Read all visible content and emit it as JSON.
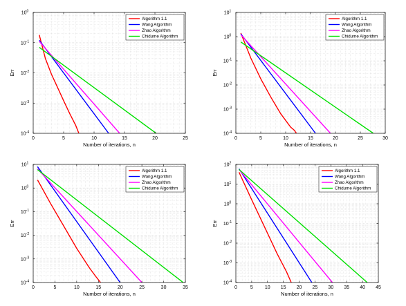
{
  "colors": {
    "algorithm11": "#ff0000",
    "wang": "#0000ff",
    "zhao": "#ff00ff",
    "chidume": "#00e000",
    "grid": "#d8d8d8",
    "axis": "#000000"
  },
  "chart_data": [
    {
      "type": "line",
      "xlabel": "Number of iterations, n",
      "ylabel": "Err",
      "yscale": "log",
      "xlim": [
        0,
        25
      ],
      "ylim_exp": [
        -4,
        0
      ],
      "xticks": [
        0,
        5,
        10,
        15,
        20,
        25
      ],
      "yticks_exp": [
        -4,
        -3,
        -2,
        -1,
        0
      ],
      "legend": "top-right",
      "grid": true,
      "series": [
        {
          "name": "Algorithm 1.1",
          "color_key": "algorithm11",
          "x": [
            1,
            2,
            3,
            4,
            5,
            6,
            7,
            7.5
          ],
          "y": [
            0.18,
            0.03,
            0.009,
            0.0033,
            0.0012,
            0.00045,
            0.00018,
            0.0001
          ]
        },
        {
          "name": "Wang Algorithm",
          "color_key": "wang",
          "x": [
            1,
            12.4
          ],
          "y": [
            0.12,
            0.0001
          ]
        },
        {
          "name": "Zhao Algorithm",
          "color_key": "zhao",
          "x": [
            1,
            14.2
          ],
          "y": [
            0.11,
            0.0001
          ]
        },
        {
          "name": "Chidume Algorithm",
          "color_key": "chidume",
          "x": [
            1,
            20.2
          ],
          "y": [
            0.07,
            0.0001
          ]
        }
      ]
    },
    {
      "type": "line",
      "xlabel": "Number of iterations, n",
      "ylabel": "Err",
      "yscale": "log",
      "xlim": [
        0,
        30
      ],
      "ylim_exp": [
        -4,
        1
      ],
      "xticks": [
        0,
        5,
        10,
        15,
        20,
        25,
        30
      ],
      "yticks_exp": [
        -4,
        -3,
        -2,
        -1,
        0,
        1
      ],
      "legend": "top-right",
      "grid": true,
      "series": [
        {
          "name": "Algorithm 1.1",
          "color_key": "algorithm11",
          "x": [
            1,
            3,
            5,
            7,
            9,
            11,
            11.8,
            12,
            12.2
          ],
          "y": [
            1.4,
            0.13,
            0.018,
            0.0032,
            0.00065,
            0.00018,
            0.00013,
            0.00011,
            0.0001
          ]
        },
        {
          "name": "Wang Algorithm",
          "color_key": "wang",
          "x": [
            1,
            16
          ],
          "y": [
            1.3,
            0.0001
          ]
        },
        {
          "name": "Zhao Algorithm",
          "color_key": "zhao",
          "x": [
            1,
            19
          ],
          "y": [
            1.2,
            0.0001
          ]
        },
        {
          "name": "Chidume Algorithm",
          "color_key": "chidume",
          "x": [
            1,
            27.6
          ],
          "y": [
            0.6,
            0.0001
          ]
        }
      ]
    },
    {
      "type": "line",
      "xlabel": "Number of iterations, n",
      "ylabel": "Err",
      "yscale": "log",
      "xlim": [
        0,
        35
      ],
      "ylim_exp": [
        -4,
        1
      ],
      "xticks": [
        0,
        5,
        10,
        15,
        20,
        25,
        30,
        35
      ],
      "yticks_exp": [
        -4,
        -3,
        -2,
        -1,
        0,
        1
      ],
      "legend": "top-right",
      "grid": true,
      "series": [
        {
          "name": "Algorithm 1.1",
          "color_key": "algorithm11",
          "x": [
            1,
            4,
            7,
            10,
            13,
            14.5,
            15.5
          ],
          "y": [
            2.2,
            0.22,
            0.025,
            0.0028,
            0.0004,
            0.00017,
            0.0001
          ]
        },
        {
          "name": "Wang Algorithm",
          "color_key": "wang",
          "x": [
            1,
            20
          ],
          "y": [
            8,
            0.0001
          ]
        },
        {
          "name": "Zhao Algorithm",
          "color_key": "zhao",
          "x": [
            1,
            25
          ],
          "y": [
            6.5,
            0.0001
          ]
        },
        {
          "name": "Chidume Algorithm",
          "color_key": "chidume",
          "x": [
            1,
            34.5
          ],
          "y": [
            6,
            0.0001
          ]
        }
      ]
    },
    {
      "type": "line",
      "xlabel": "Number of iterations, n",
      "ylabel": "Err",
      "yscale": "log",
      "xlim": [
        0,
        45
      ],
      "ylim_exp": [
        -4,
        2
      ],
      "xticks": [
        0,
        5,
        10,
        15,
        20,
        25,
        30,
        35,
        40,
        45
      ],
      "yticks_exp": [
        -4,
        -3,
        -2,
        -1,
        0,
        1,
        2
      ],
      "legend": "top-right",
      "grid": true,
      "series": [
        {
          "name": "Algorithm 1.1",
          "color_key": "algorithm11",
          "x": [
            1,
            5,
            9,
            13,
            16,
            17.5
          ],
          "y": [
            40,
            1.6,
            0.07,
            0.003,
            0.00035,
            0.0001
          ]
        },
        {
          "name": "Wang Algorithm",
          "color_key": "wang",
          "x": [
            1,
            24
          ],
          "y": [
            60,
            0.0001
          ]
        },
        {
          "name": "Zhao Algorithm",
          "color_key": "zhao",
          "x": [
            1,
            30.5
          ],
          "y": [
            55,
            0.0001
          ]
        },
        {
          "name": "Chidume Algorithm",
          "color_key": "chidume",
          "x": [
            1,
            41.5
          ],
          "y": [
            55,
            0.0001
          ]
        }
      ]
    }
  ]
}
